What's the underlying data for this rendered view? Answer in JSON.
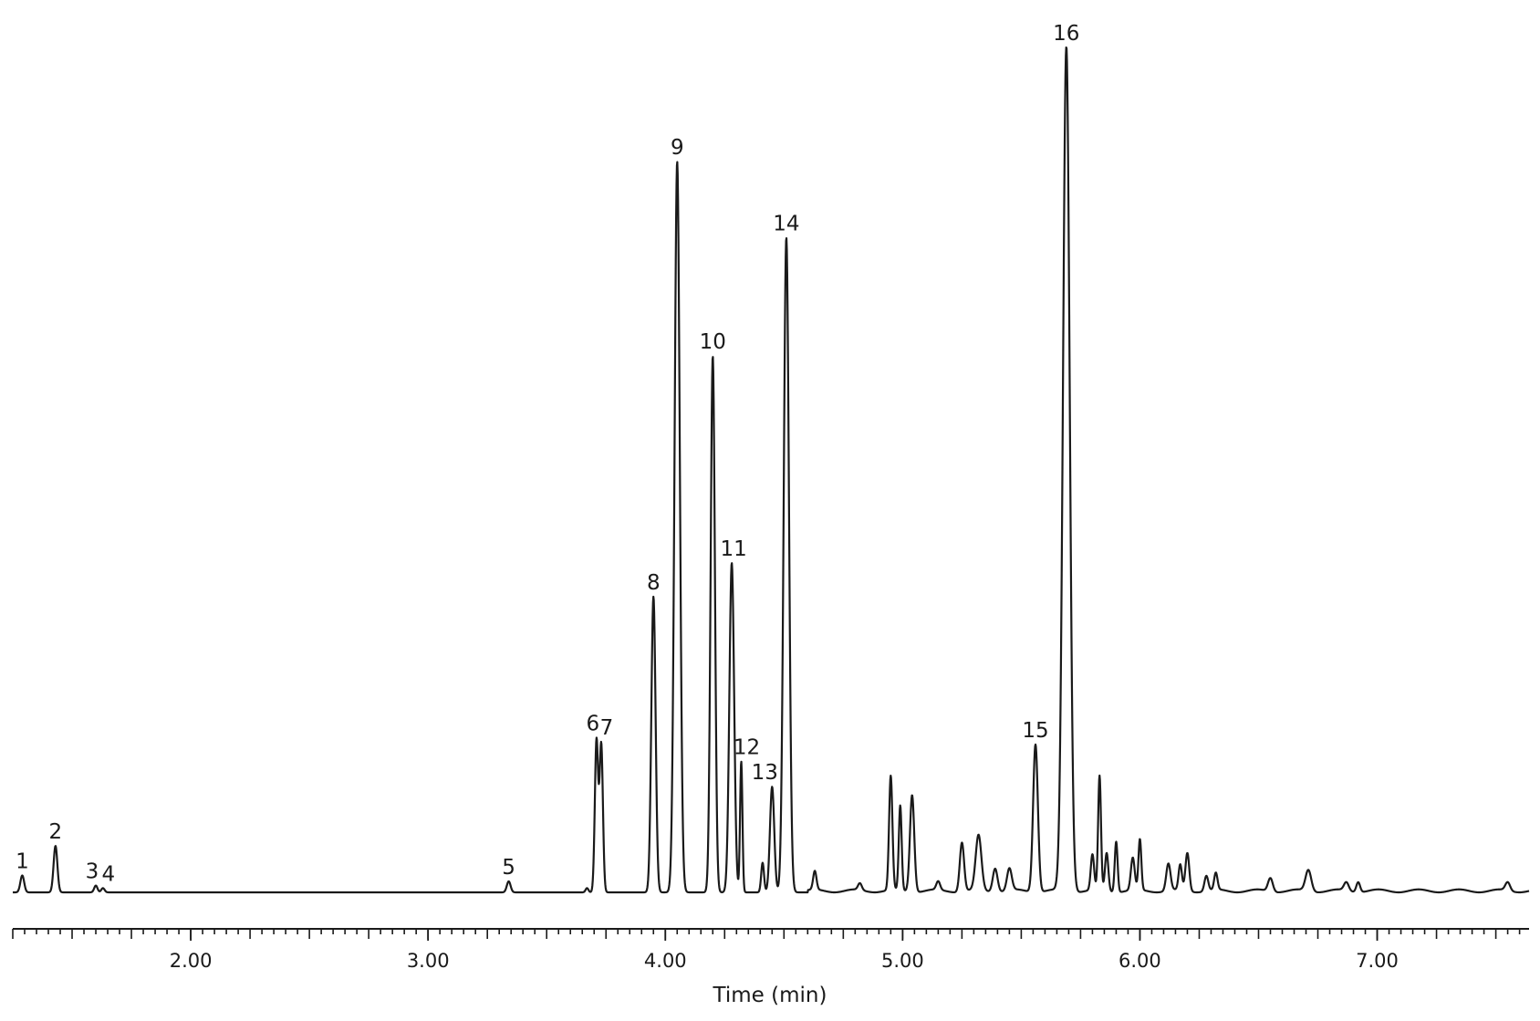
{
  "chart_data": {
    "type": "line",
    "title": "",
    "xlabel": "Time (min)",
    "ylabel": "",
    "xlim": [
      1.25,
      7.64
    ],
    "ylim": [
      0,
      100
    ],
    "grid": false,
    "line_color": "#1a1a1a",
    "x_ticks": [
      {
        "value": 2.0,
        "label": "2.00"
      },
      {
        "value": 3.0,
        "label": "3.00"
      },
      {
        "value": 4.0,
        "label": "4.00"
      },
      {
        "value": 5.0,
        "label": "5.00"
      },
      {
        "value": 6.0,
        "label": "6.00"
      },
      {
        "value": 7.0,
        "label": "7.00"
      }
    ],
    "minor_tick_step": 0.05,
    "peaks": [
      {
        "label": "1",
        "rt": 1.29,
        "height": 2.0,
        "width": 0.008
      },
      {
        "label": "2",
        "rt": 1.43,
        "height": 5.5,
        "width": 0.008
      },
      {
        "label": "3",
        "rt": 1.6,
        "height": 0.8,
        "width": 0.007
      },
      {
        "label": "4",
        "rt": 1.63,
        "height": 0.5,
        "width": 0.007
      },
      {
        "label": "5",
        "rt": 3.34,
        "height": 1.3,
        "width": 0.008
      },
      {
        "label": "6",
        "rt": 3.71,
        "height": 18.0,
        "width": 0.007
      },
      {
        "label": "7",
        "rt": 3.73,
        "height": 17.5,
        "width": 0.007
      },
      {
        "label": "8",
        "rt": 3.95,
        "height": 35.0,
        "width": 0.009
      },
      {
        "label": "9",
        "rt": 4.05,
        "height": 86.5,
        "width": 0.011
      },
      {
        "label": "10",
        "rt": 4.2,
        "height": 63.5,
        "width": 0.009
      },
      {
        "label": "11",
        "rt": 4.28,
        "height": 39.0,
        "width": 0.01
      },
      {
        "label": "12",
        "rt": 4.32,
        "height": 15.5,
        "width": 0.005
      },
      {
        "label": "13",
        "rt": 4.45,
        "height": 12.5,
        "width": 0.009
      },
      {
        "label": "14",
        "rt": 4.51,
        "height": 77.5,
        "width": 0.011
      },
      {
        "label": "15",
        "rt": 5.56,
        "height": 17.5,
        "width": 0.01
      },
      {
        "label": "16",
        "rt": 5.69,
        "height": 100.0,
        "width": 0.014
      }
    ],
    "unlabeled_peaks": [
      {
        "rt": 3.67,
        "height": 0.5,
        "width": 0.006
      },
      {
        "rt": 4.41,
        "height": 3.5,
        "width": 0.006
      },
      {
        "rt": 4.63,
        "height": 2.2,
        "width": 0.007
      },
      {
        "rt": 4.82,
        "height": 0.8,
        "width": 0.008
      },
      {
        "rt": 4.95,
        "height": 13.5,
        "width": 0.007
      },
      {
        "rt": 4.99,
        "height": 10.0,
        "width": 0.006
      },
      {
        "rt": 5.04,
        "height": 11.5,
        "width": 0.009
      },
      {
        "rt": 5.15,
        "height": 1.0,
        "width": 0.008
      },
      {
        "rt": 5.25,
        "height": 5.8,
        "width": 0.009
      },
      {
        "rt": 5.32,
        "height": 6.5,
        "width": 0.012
      },
      {
        "rt": 5.39,
        "height": 2.8,
        "width": 0.01
      },
      {
        "rt": 5.45,
        "height": 2.6,
        "width": 0.01
      },
      {
        "rt": 5.8,
        "height": 4.2,
        "width": 0.007
      },
      {
        "rt": 5.83,
        "height": 13.5,
        "width": 0.006
      },
      {
        "rt": 5.86,
        "height": 4.5,
        "width": 0.007
      },
      {
        "rt": 5.9,
        "height": 6.0,
        "width": 0.006
      },
      {
        "rt": 5.97,
        "height": 3.8,
        "width": 0.008
      },
      {
        "rt": 6.0,
        "height": 6.0,
        "width": 0.006
      },
      {
        "rt": 6.12,
        "height": 3.2,
        "width": 0.009
      },
      {
        "rt": 6.17,
        "height": 3.0,
        "width": 0.007
      },
      {
        "rt": 6.2,
        "height": 4.5,
        "width": 0.008
      },
      {
        "rt": 6.28,
        "height": 1.8,
        "width": 0.008
      },
      {
        "rt": 6.32,
        "height": 2.0,
        "width": 0.007
      },
      {
        "rt": 6.55,
        "height": 1.6,
        "width": 0.01
      },
      {
        "rt": 6.71,
        "height": 2.5,
        "width": 0.012
      },
      {
        "rt": 6.87,
        "height": 1.0,
        "width": 0.01
      },
      {
        "rt": 6.92,
        "height": 1.2,
        "width": 0.008
      },
      {
        "rt": 7.55,
        "height": 1.0,
        "width": 0.01
      }
    ]
  }
}
